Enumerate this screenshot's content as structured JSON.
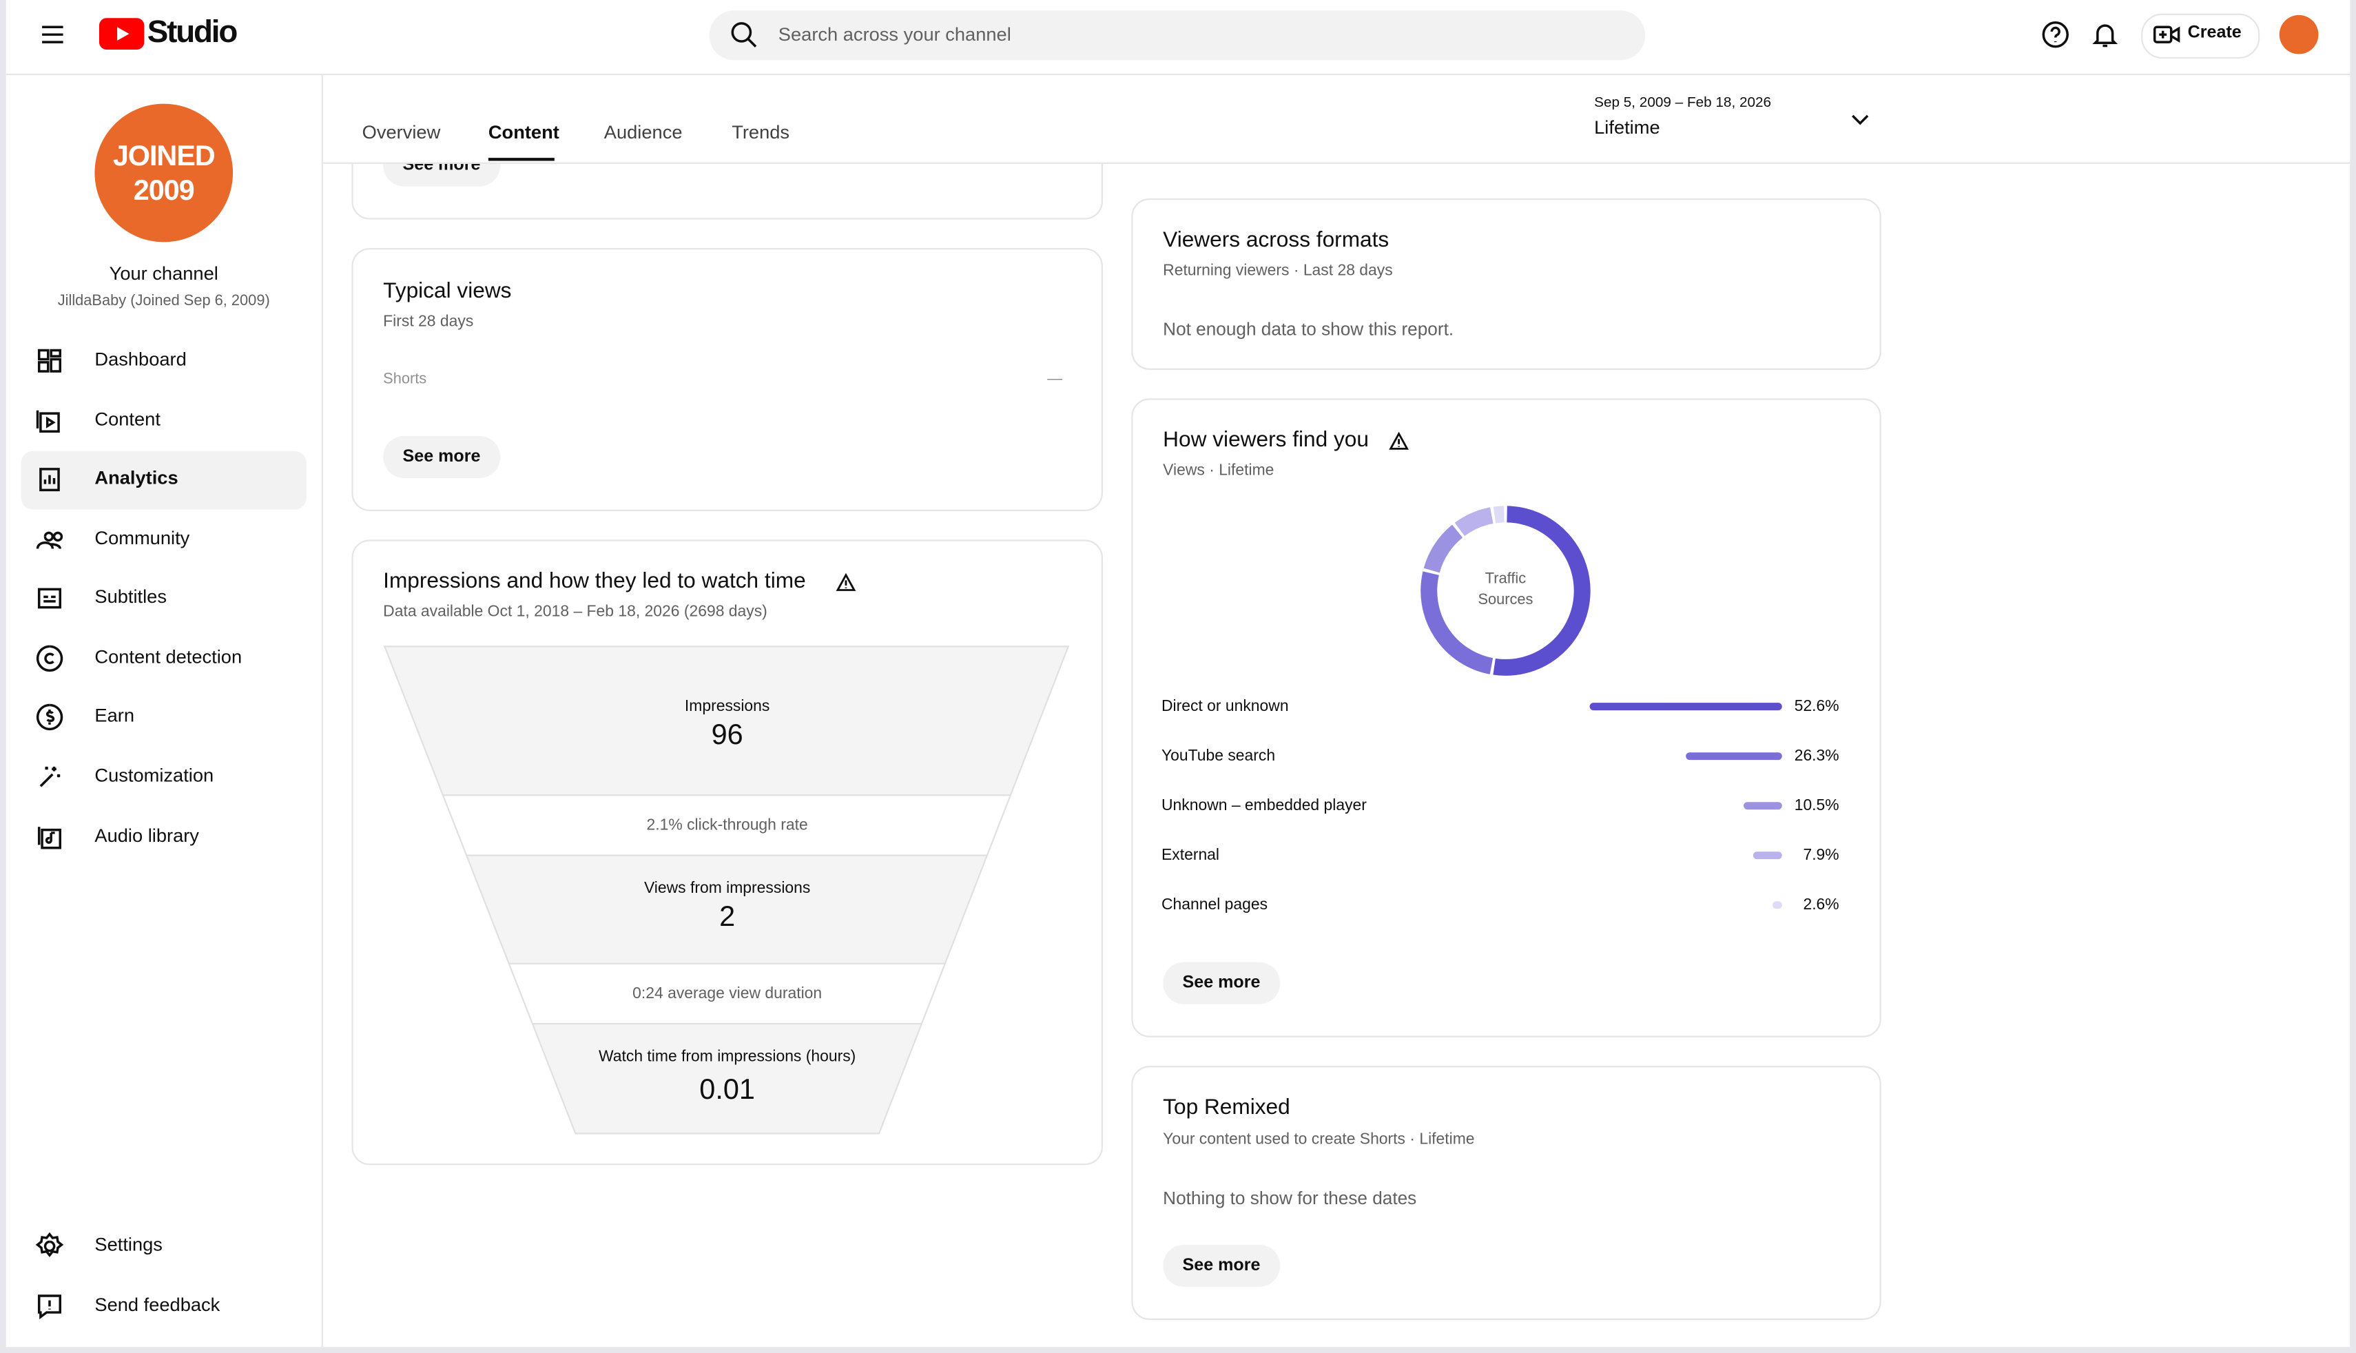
{
  "header": {
    "logo": "Studio",
    "search_placeholder": "Search across your channel",
    "create": "Create"
  },
  "sidebar": {
    "avatar_line1": "JOINED",
    "avatar_line2": "2009",
    "channel_title": "Your channel",
    "channel_subtitle": "JilldaBaby (Joined Sep 6, 2009)",
    "nav": [
      "Dashboard",
      "Content",
      "Analytics",
      "Community",
      "Subtitles",
      "Content detection",
      "Earn",
      "Customization",
      "Audio library"
    ],
    "bottom_nav": [
      "Settings",
      "Send feedback"
    ]
  },
  "tabs": [
    "Overview",
    "Content",
    "Audience",
    "Trends"
  ],
  "date_range": {
    "range": "Sep 5, 2009 – Feb 18, 2026",
    "label": "Lifetime"
  },
  "see_more": "See more",
  "typical_views": {
    "title": "Typical views",
    "subtitle": "First 28 days",
    "row_label": "Shorts",
    "row_value": "—"
  },
  "impressions": {
    "title": "Impressions and how they led to watch time",
    "subtitle": "Data available Oct 1, 2018 – Feb 18, 2026 (2698 days)",
    "impressions_label": "Impressions",
    "impressions_value": 96,
    "ctr": "2.1% click-through rate",
    "views_label": "Views from impressions",
    "views_value": 2,
    "avd": "0:24 average view duration",
    "watch_label": "Watch time from impressions (hours)",
    "watch_value": 0.01
  },
  "viewers_formats": {
    "title": "Viewers across formats",
    "subtitle": "Returning viewers · Last 28 days",
    "message": "Not enough data to show this report."
  },
  "traffic_chart": {
    "title": "How viewers find you",
    "subtitle": "Views · Lifetime",
    "center_line1": "Traffic",
    "center_line2": "Sources",
    "categories": [
      "Direct or unknown",
      "YouTube search",
      "Unknown – embedded player",
      "External",
      "Channel pages"
    ],
    "values": [
      52.6,
      26.3,
      10.5,
      7.9,
      2.6
    ],
    "value_labels": [
      "52.6%",
      "26.3%",
      "10.5%",
      "7.9%",
      "2.6%"
    ],
    "colors": [
      "#5b4fcf",
      "#7a6fd8",
      "#9b92e2",
      "#b9b2ec",
      "#dedbf6"
    ]
  },
  "top_remixed": {
    "title": "Top Remixed",
    "subtitle": "Your content used to create Shorts · Lifetime",
    "message": "Nothing to show for these dates"
  }
}
